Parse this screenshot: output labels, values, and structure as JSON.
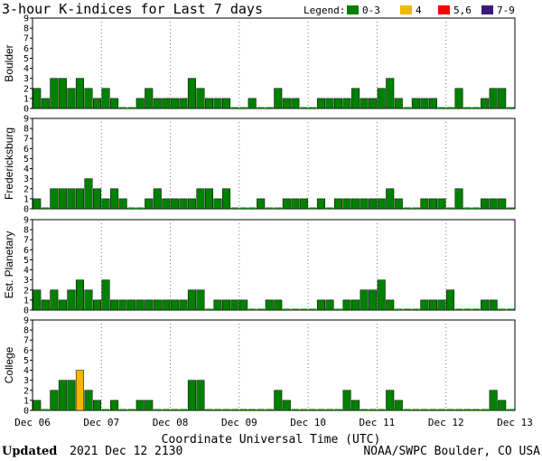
{
  "chart_data": {
    "type": "bar",
    "title": "3-hour K-indices for Last 7 days",
    "legend": {
      "title": "Legend:",
      "placement": "top-right",
      "items": [
        {
          "label": "0-3",
          "color": "#008000"
        },
        {
          "label": "4",
          "color": "#f2b800"
        },
        {
          "label": "5,6",
          "color": "#ff0000"
        },
        {
          "label": "7-9",
          "color": "#3a1a78"
        }
      ]
    },
    "xlabel": "Coordinate Universal Time (UTC)",
    "x_tick_labels": [
      "Dec 06",
      "Dec 07",
      "Dec 08",
      "Dec 09",
      "Dec 10",
      "Dec 11",
      "Dec 12",
      "Dec 13"
    ],
    "ylim": [
      0,
      9
    ],
    "y_ticks": [
      "0",
      "1",
      "2",
      "3",
      "4",
      "5",
      "6",
      "7",
      "8",
      "9"
    ],
    "grid": true,
    "series": [
      {
        "name": "Boulder",
        "values": [
          2,
          1,
          3,
          3,
          2,
          3,
          2,
          1,
          2,
          1,
          0,
          0,
          1,
          2,
          1,
          1,
          1,
          1,
          3,
          2,
          1,
          1,
          1,
          0,
          0,
          1,
          0,
          0,
          2,
          1,
          1,
          0,
          0,
          1,
          1,
          1,
          1,
          2,
          1,
          1,
          2,
          3,
          1,
          0,
          1,
          1,
          1,
          0,
          0,
          2,
          0,
          0,
          1,
          2,
          2,
          0
        ]
      },
      {
        "name": "Fredericksburg",
        "values": [
          1,
          0,
          2,
          2,
          2,
          2,
          3,
          2,
          1,
          2,
          1,
          0,
          0,
          1,
          2,
          1,
          1,
          1,
          1,
          2,
          2,
          1,
          2,
          0,
          0,
          0,
          1,
          0,
          0,
          1,
          1,
          1,
          0,
          1,
          0,
          1,
          1,
          1,
          1,
          1,
          1,
          2,
          1,
          0,
          0,
          1,
          1,
          1,
          0,
          2,
          0,
          0,
          1,
          1,
          1,
          0
        ]
      },
      {
        "name": "Est. Planetary",
        "values": [
          2,
          1,
          2,
          1,
          2,
          3,
          2,
          1,
          3,
          1,
          1,
          1,
          1,
          1,
          1,
          1,
          1,
          1,
          2,
          2,
          0,
          1,
          1,
          1,
          1,
          0,
          0,
          1,
          1,
          0,
          0,
          0,
          0,
          1,
          1,
          0,
          1,
          1,
          2,
          2,
          3,
          1,
          0,
          0,
          0,
          1,
          1,
          1,
          2,
          0,
          0,
          0,
          1,
          1,
          0,
          0
        ]
      },
      {
        "name": "College",
        "values": [
          1,
          0,
          2,
          3,
          3,
          4,
          2,
          1,
          0,
          1,
          0,
          0,
          1,
          1,
          0,
          0,
          0,
          0,
          3,
          3,
          0,
          0,
          0,
          0,
          0,
          0,
          0,
          0,
          2,
          1,
          0,
          0,
          0,
          0,
          0,
          0,
          2,
          1,
          0,
          0,
          0,
          2,
          1,
          0,
          0,
          0,
          0,
          0,
          0,
          0,
          0,
          0,
          0,
          2,
          1,
          0
        ]
      }
    ]
  },
  "footer": {
    "updated_label": "Updated",
    "updated_value": "2021 Dec 12 2130",
    "credit": "NOAA/SWPC Boulder, CO USA"
  }
}
